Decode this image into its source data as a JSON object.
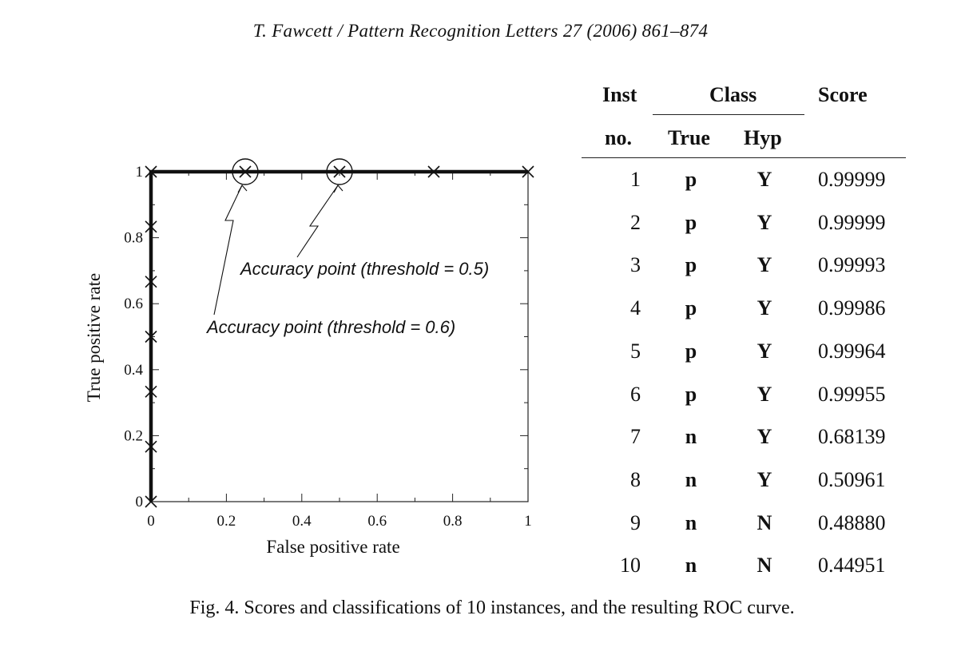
{
  "header": "T. Fawcett / Pattern Recognition Letters 27 (2006) 861–874",
  "chart_data": {
    "type": "line",
    "xlabel": "False positive rate",
    "ylabel": "True positive rate",
    "xlim": [
      0,
      1
    ],
    "ylim": [
      0,
      1
    ],
    "x_ticks": [
      "0",
      "0.2",
      "0.4",
      "0.6",
      "0.8",
      "1"
    ],
    "y_ticks": [
      "0",
      "0.2",
      "0.4",
      "0.6",
      "0.8",
      "1"
    ],
    "grid": false,
    "series": [
      {
        "x": [
          0,
          0,
          0,
          0,
          0,
          0,
          0,
          0.25,
          0.5,
          0.75,
          1
        ],
        "y": [
          0,
          0.1667,
          0.3333,
          0.5,
          0.6667,
          0.8333,
          1,
          1,
          1,
          1,
          1
        ]
      }
    ],
    "circled_points": [
      [
        0.25,
        1
      ],
      [
        0.5,
        1
      ]
    ],
    "annotations": [
      {
        "text": "Accuracy point (threshold = 0.5)",
        "target": [
          0.5,
          1
        ]
      },
      {
        "text": "Accuracy point (threshold = 0.6)",
        "target": [
          0.25,
          1
        ]
      }
    ]
  },
  "table": {
    "headers": {
      "inst": "Inst",
      "no": "no.",
      "class": "Class",
      "true": "True",
      "hyp": "Hyp",
      "score": "Score"
    },
    "rows": [
      {
        "no": "1",
        "true": "p",
        "hyp": "Y",
        "score": "0.99999"
      },
      {
        "no": "2",
        "true": "p",
        "hyp": "Y",
        "score": "0.99999"
      },
      {
        "no": "3",
        "true": "p",
        "hyp": "Y",
        "score": "0.99993"
      },
      {
        "no": "4",
        "true": "p",
        "hyp": "Y",
        "score": "0.99986"
      },
      {
        "no": "5",
        "true": "p",
        "hyp": "Y",
        "score": "0.99964"
      },
      {
        "no": "6",
        "true": "p",
        "hyp": "Y",
        "score": "0.99955"
      },
      {
        "no": "7",
        "true": "n",
        "hyp": "Y",
        "score": "0.68139"
      },
      {
        "no": "8",
        "true": "n",
        "hyp": "Y",
        "score": "0.50961"
      },
      {
        "no": "9",
        "true": "n",
        "hyp": "N",
        "score": "0.48880"
      },
      {
        "no": "10",
        "true": "n",
        "hyp": "N",
        "score": "0.44951"
      }
    ]
  },
  "caption": "Fig. 4. Scores and classifications of 10 instances, and the resulting ROC curve."
}
